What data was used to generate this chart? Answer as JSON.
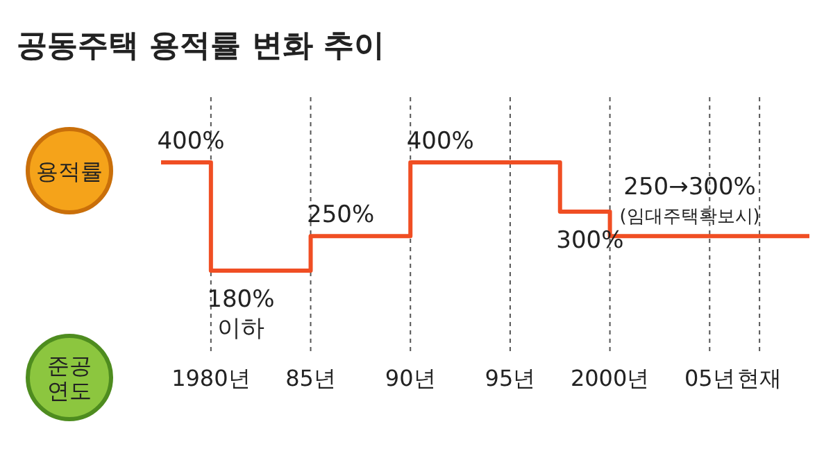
{
  "chart_data": {
    "type": "step",
    "title": "공동주택 용적률 변화 추이",
    "ylabel": "용적률",
    "xlabel": "준공 연도",
    "categories": [
      null,
      "1980년",
      null,
      "85년",
      null,
      "90년",
      null,
      "95년",
      null,
      "2000년",
      null,
      "05년",
      "현재",
      null
    ],
    "series": [
      {
        "color": "#f04e23",
        "values": [
          400,
          180,
          180,
          250,
          250,
          400,
          400,
          400,
          300,
          250,
          250,
          250,
          250,
          250
        ],
        "value_labels": [
          "400%",
          "180% 이하",
          null,
          "250%",
          null,
          "400%",
          null,
          null,
          "300%",
          "250→300%",
          null,
          null,
          null,
          null
        ]
      }
    ],
    "annotations": [
      "(임대주택확보시)"
    ],
    "grid": "x",
    "line_style": "solid"
  }
}
